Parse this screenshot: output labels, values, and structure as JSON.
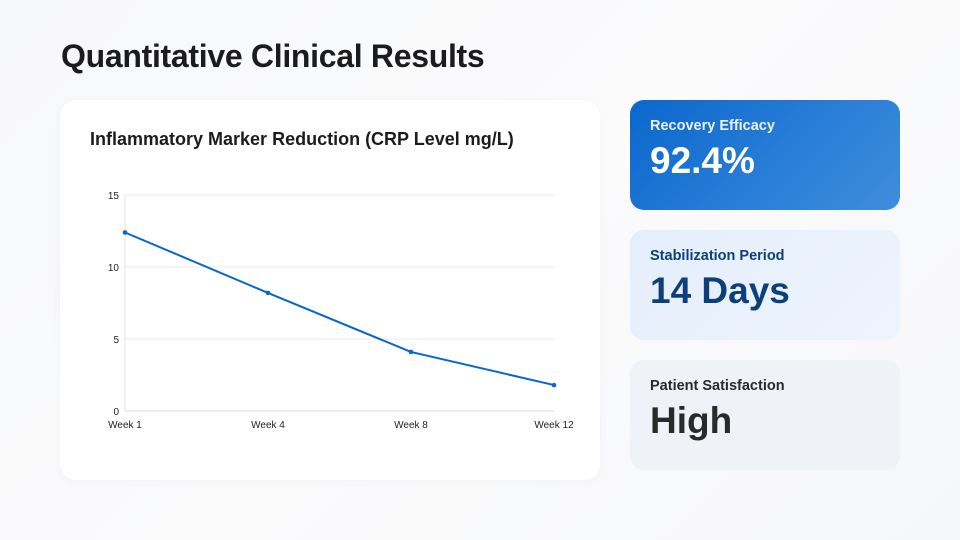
{
  "page": {
    "title": "Quantitative Clinical Results"
  },
  "chart_data": {
    "type": "line",
    "title": "Inflammatory Marker Reduction (CRP Level mg/L)",
    "categories": [
      "Week 1",
      "Week 4",
      "Week 8",
      "Week 12"
    ],
    "series": [
      {
        "values": [
          12.4,
          8.2,
          4.1,
          1.8
        ],
        "color": "#0a66cc"
      }
    ],
    "yticks": [
      0,
      5,
      10,
      15
    ],
    "ylim": [
      0,
      15
    ],
    "grid": true,
    "legend": "none"
  },
  "stats": [
    {
      "label": "Recovery Efficacy",
      "value": "92.4%"
    },
    {
      "label": "Stabilization Period",
      "value": "14 Days"
    },
    {
      "label": "Patient Satisfaction",
      "value": "High"
    }
  ]
}
